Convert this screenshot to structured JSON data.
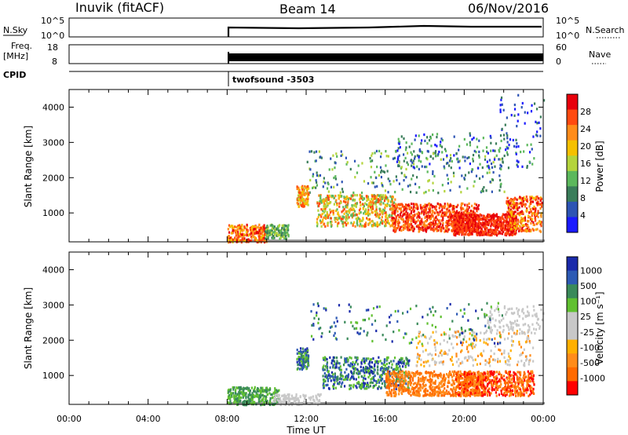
{
  "header": {
    "radar": "Inuvik (fitACF)",
    "beam": "Beam 14",
    "date": "06/Nov/2016"
  },
  "top_panels": {
    "nsky_label": "N.Sky",
    "nsky_ticks": [
      "10^5",
      "10^0"
    ],
    "nsearch_label": "N.Search",
    "nsearch_ticks": [
      "10^5",
      "10^0"
    ],
    "freq_label": "Freq.",
    "freq_unit": "[MHz]",
    "freq_ticks": [
      "18",
      "8"
    ],
    "nave_label": "Nave",
    "nave_ticks": [
      "60",
      "0"
    ],
    "cpid_label": "CPID",
    "cpid_value": "twofsound -3503"
  },
  "colors": {
    "power_scale": [
      "#1a1aff",
      "#2d54b4",
      "#3a7d5a",
      "#5cb85c",
      "#b4d43c",
      "#f5c000",
      "#ff8c1a",
      "#ff4a10",
      "#e8000b"
    ],
    "velocity_scale": [
      "#ff0000",
      "#ff6a00",
      "#ff8c1a",
      "#ffb000",
      "#c8c8c8",
      "#c8c8c8",
      "#60c030",
      "#3a8a5a",
      "#2d5ab4",
      "#1a2aaa"
    ],
    "ground_scatter": "#9a9a9a"
  },
  "chart_data": [
    {
      "type": "heatmap",
      "name": "Power",
      "xlabel": "",
      "ylabel": "Slant Range [km]",
      "ylim": [
        180,
        4500
      ],
      "y_ticks": [
        1000,
        2000,
        3000,
        4000
      ],
      "x_ticks": [
        "00:00",
        "04:00",
        "08:00",
        "12:00",
        "16:00",
        "20:00",
        "00:00"
      ],
      "colorbar": {
        "label": "Power [dB]",
        "ticks": [
          4,
          8,
          12,
          16,
          20,
          24,
          28
        ],
        "range": [
          0,
          32
        ]
      },
      "data_start_ut": 8.0
    },
    {
      "type": "heatmap",
      "name": "Velocity",
      "xlabel": "Time UT",
      "ylabel": "Slant Range [km]",
      "ylim": [
        180,
        4500
      ],
      "y_ticks": [
        1000,
        2000,
        3000,
        4000
      ],
      "x_ticks": [
        "00:00",
        "04:00",
        "08:00",
        "12:00",
        "16:00",
        "20:00",
        "00:00"
      ],
      "colorbar": {
        "label": "Velocity [m s⁻¹]",
        "ticks": [
          1000,
          500,
          100,
          25,
          -25,
          -100,
          -500,
          -1000
        ]
      },
      "data_start_ut": 8.0
    }
  ]
}
